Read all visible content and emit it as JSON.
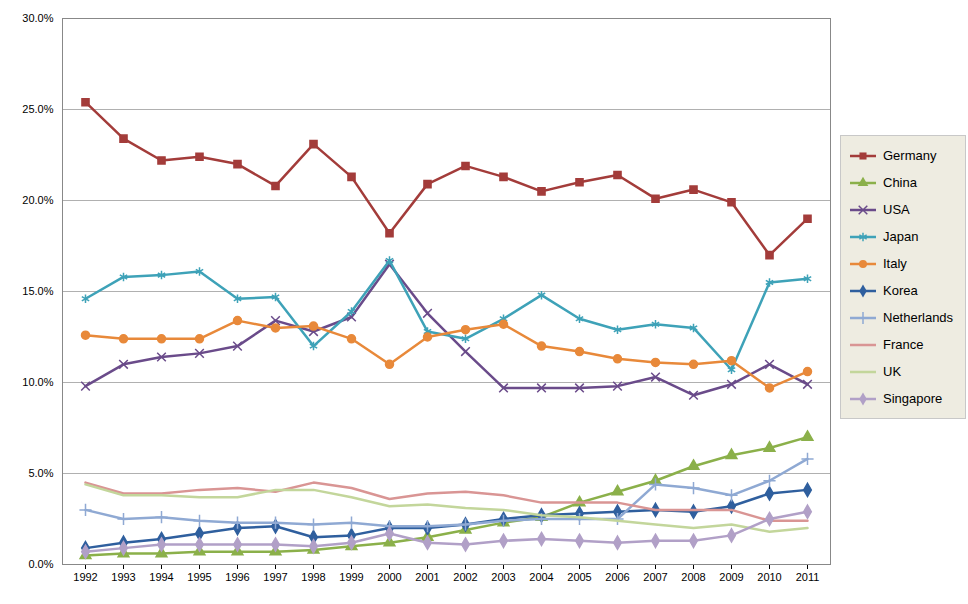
{
  "chart_data": {
    "type": "line",
    "categories": [
      "1992",
      "1993",
      "1994",
      "1995",
      "1996",
      "1997",
      "1998",
      "1999",
      "2000",
      "2001",
      "2002",
      "2003",
      "2004",
      "2005",
      "2006",
      "2007",
      "2008",
      "2009",
      "2010",
      "2011"
    ],
    "ylim": [
      0,
      30
    ],
    "yticks": [
      {
        "value": 0,
        "label": "0.0%"
      },
      {
        "value": 5,
        "label": "5.0%"
      },
      {
        "value": 10,
        "label": "10.0%"
      },
      {
        "value": 15,
        "label": "15.0%"
      },
      {
        "value": 20,
        "label": "20.0%"
      },
      {
        "value": 25,
        "label": "25.0%"
      },
      {
        "value": 30,
        "label": "30.0%"
      }
    ],
    "grid": true,
    "legend": "right",
    "series": [
      {
        "name": "Germany",
        "color": "#a33c3a",
        "marker": "square",
        "values": [
          25.4,
          23.4,
          22.2,
          22.4,
          22.0,
          20.8,
          23.1,
          21.3,
          18.2,
          20.9,
          21.9,
          21.3,
          20.5,
          21.0,
          21.4,
          20.1,
          20.6,
          19.9,
          17.0,
          19.0
        ]
      },
      {
        "name": "China",
        "color": "#8bb04a",
        "marker": "triangle",
        "values": [
          0.5,
          0.6,
          0.6,
          0.7,
          0.7,
          0.7,
          0.8,
          1.0,
          1.2,
          1.5,
          1.9,
          2.3,
          2.6,
          3.4,
          4.0,
          4.6,
          5.4,
          6.0,
          6.4,
          7.0
        ]
      },
      {
        "name": "USA",
        "color": "#6a4b8a",
        "marker": "times",
        "values": [
          9.8,
          11.0,
          11.4,
          11.6,
          12.0,
          13.4,
          12.8,
          13.6,
          16.5,
          13.8,
          11.7,
          9.7,
          9.7,
          9.7,
          9.8,
          10.3,
          9.3,
          9.9,
          11.0,
          9.9
        ]
      },
      {
        "name": "Japan",
        "color": "#3ea2b8",
        "marker": "asterisk",
        "values": [
          14.6,
          15.8,
          15.9,
          16.1,
          14.6,
          14.7,
          12.0,
          13.9,
          16.7,
          12.8,
          12.4,
          13.5,
          14.8,
          13.5,
          12.9,
          13.2,
          13.0,
          10.7,
          15.5,
          15.7
        ]
      },
      {
        "name": "Italy",
        "color": "#e8893a",
        "marker": "circle",
        "values": [
          12.6,
          12.4,
          12.4,
          12.4,
          13.4,
          13.0,
          13.1,
          12.4,
          11.0,
          12.5,
          12.9,
          13.2,
          12.0,
          11.7,
          11.3,
          11.1,
          11.0,
          11.2,
          9.7,
          10.6
        ]
      },
      {
        "name": "Korea",
        "color": "#2f5f9e",
        "marker": "diamond",
        "values": [
          0.9,
          1.2,
          1.4,
          1.7,
          2.0,
          2.1,
          1.5,
          1.6,
          2.0,
          2.0,
          2.2,
          2.5,
          2.7,
          2.8,
          2.9,
          3.0,
          2.9,
          3.2,
          3.9,
          4.1
        ]
      },
      {
        "name": "Netherlands",
        "color": "#8fa9d3",
        "marker": "plus",
        "values": [
          3.0,
          2.5,
          2.6,
          2.4,
          2.3,
          2.3,
          2.2,
          2.3,
          2.1,
          2.1,
          2.2,
          2.4,
          2.5,
          2.5,
          2.5,
          4.4,
          4.2,
          3.8,
          4.6,
          5.8
        ]
      },
      {
        "name": "France",
        "color": "#d99594",
        "marker": "none",
        "values": [
          4.5,
          3.9,
          3.9,
          4.1,
          4.2,
          4.0,
          4.5,
          4.2,
          3.6,
          3.9,
          4.0,
          3.8,
          3.4,
          3.4,
          3.4,
          3.0,
          3.0,
          3.0,
          2.4,
          2.4
        ]
      },
      {
        "name": "UK",
        "color": "#c3d69b",
        "marker": "none",
        "values": [
          4.4,
          3.8,
          3.8,
          3.7,
          3.7,
          4.1,
          4.1,
          3.7,
          3.2,
          3.3,
          3.1,
          3.0,
          2.7,
          2.6,
          2.4,
          2.2,
          2.0,
          2.2,
          1.8,
          2.0
        ]
      },
      {
        "name": "Singapore",
        "color": "#b1a0c7",
        "marker": "diamond",
        "values": [
          0.7,
          0.9,
          1.1,
          1.1,
          1.1,
          1.1,
          1.0,
          1.2,
          1.7,
          1.2,
          1.1,
          1.3,
          1.4,
          1.3,
          1.2,
          1.3,
          1.3,
          1.6,
          2.5,
          2.9
        ]
      }
    ]
  }
}
